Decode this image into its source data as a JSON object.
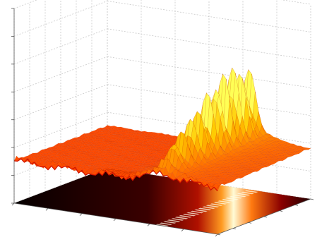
{
  "figure": {
    "description_type": "surf plot with projected heatmap (surfc-like)"
  },
  "chart_data": {
    "type": "heatmap",
    "title": "",
    "xlabel": "",
    "ylabel": "",
    "zlabel": "",
    "grid": true,
    "colormap": "hot",
    "colors": {
      "background": "#ffffff",
      "grid": "#c8c8c8",
      "axis": "#555555",
      "floor_low": "#0a0000",
      "floor_mid": "#9e0000",
      "floor_high": "#fffbd6",
      "surface_low": "#ff4a00",
      "surface_high": "#ffff55"
    },
    "x_range": [
      0,
      1
    ],
    "y_range": [
      0,
      1
    ],
    "z_range": [
      0,
      1
    ],
    "surface": {
      "baseline": 0.3,
      "noise_amplitude": 0.02,
      "ridge_center_x": 0.72,
      "ridge_width": 0.05,
      "ridge_rise_start_x": 0.52,
      "peaks": [
        {
          "y": 0.05,
          "height": 0.45
        },
        {
          "y": 0.14,
          "height": 0.55
        },
        {
          "y": 0.23,
          "height": 0.62
        },
        {
          "y": 0.32,
          "height": 0.7
        },
        {
          "y": 0.41,
          "height": 0.78
        },
        {
          "y": 0.5,
          "height": 0.86
        },
        {
          "y": 0.59,
          "height": 0.92
        },
        {
          "y": 0.68,
          "height": 0.98
        },
        {
          "y": 0.77,
          "height": 1.0
        },
        {
          "y": 0.86,
          "height": 0.96
        },
        {
          "y": 0.95,
          "height": 0.88
        }
      ]
    }
  }
}
